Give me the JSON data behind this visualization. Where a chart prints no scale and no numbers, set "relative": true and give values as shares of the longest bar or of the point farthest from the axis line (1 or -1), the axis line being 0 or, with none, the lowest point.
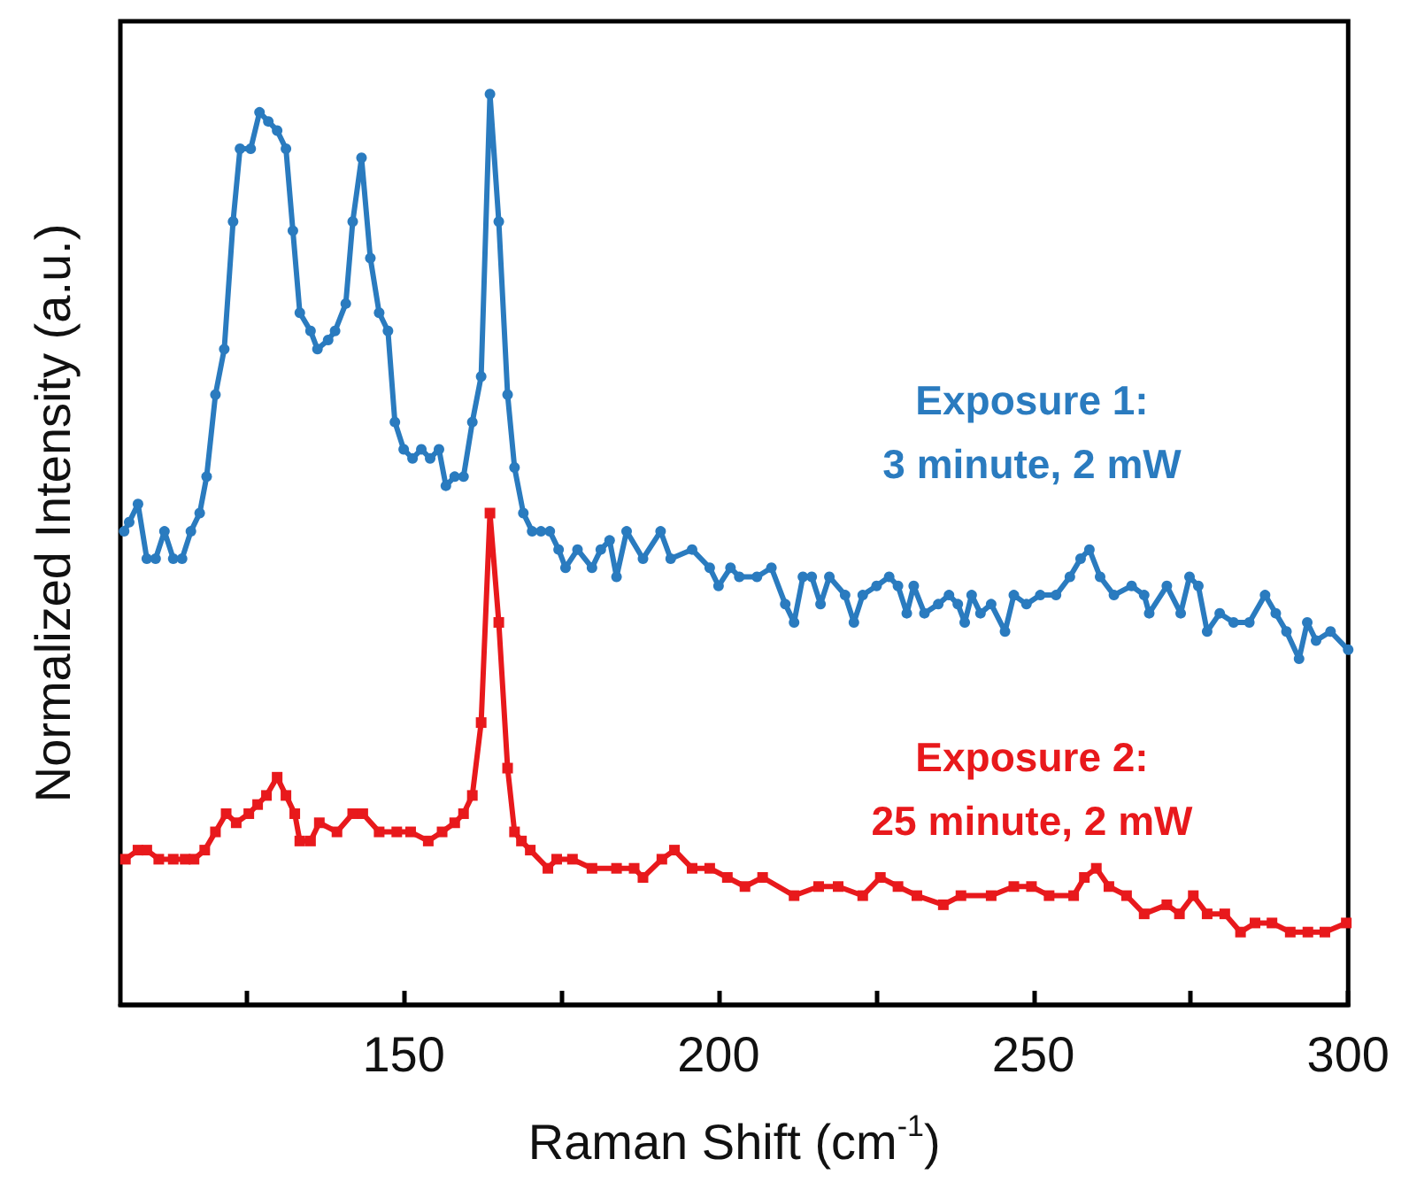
{
  "chart_data": {
    "type": "line",
    "relative": true,
    "xlabel": "Raman Shift (cm$^{-1}$)",
    "ylabel": "Normalized Intensity (a.u.)",
    "tick_labels": "x",
    "grid": false,
    "legend": false,
    "line_style": "solid",
    "xlim": [
      105,
      300
    ],
    "xticks": [
      {
        "value": 125,
        "label": null
      },
      150,
      {
        "value": 175,
        "label": null
      },
      200,
      {
        "value": 225,
        "label": null
      },
      250,
      {
        "value": 275,
        "label": null
      },
      300
    ],
    "series": [
      {
        "name": "Exposure 1:\n3 minute, 2 mW",
        "color": "#2a7bbf",
        "marker": "circle",
        "x": [
          105.6,
          106.4,
          107.8,
          109.2,
          110.6,
          112.0,
          113.4,
          114.8,
          116.2,
          117.6,
          118.7,
          120.1,
          121.5,
          122.9,
          124.0,
          125.7,
          127.1,
          128.5,
          129.9,
          131.3,
          132.4,
          133.5,
          135.2,
          136.3,
          138.0,
          139.1,
          140.8,
          141.9,
          143.3,
          144.7,
          146.1,
          147.5,
          148.6,
          150.0,
          151.4,
          152.8,
          154.2,
          155.6,
          156.7,
          158.1,
          159.5,
          160.9,
          162.3,
          163.7,
          165.1,
          166.5,
          167.6,
          169.0,
          170.4,
          171.8,
          173.2,
          174.6,
          175.7,
          177.6,
          179.9,
          181.3,
          182.7,
          183.8,
          185.4,
          188.0,
          190.8,
          192.4,
          195.8,
          198.6,
          200.0,
          201.9,
          203.3,
          206.1,
          208.4,
          210.6,
          212.0,
          213.4,
          214.8,
          216.2,
          217.6,
          220.1,
          221.5,
          222.9,
          225.1,
          227.1,
          228.5,
          229.9,
          231.0,
          232.7,
          234.9,
          236.6,
          238.0,
          239.1,
          240.2,
          241.6,
          243.3,
          245.5,
          246.9,
          248.9,
          251.1,
          253.6,
          255.8,
          257.5,
          258.9,
          260.6,
          262.8,
          265.6,
          267.6,
          268.4,
          271.2,
          273.4,
          274.8,
          276.2,
          277.6,
          279.6,
          281.8,
          284.3,
          286.8,
          288.5,
          290.2,
          292.2,
          293.5,
          294.9,
          297.2,
          300.0
        ],
        "values": [
          0.52,
          0.53,
          0.55,
          0.49,
          0.49,
          0.52,
          0.49,
          0.49,
          0.52,
          0.54,
          0.58,
          0.67,
          0.72,
          0.86,
          0.94,
          0.94,
          0.98,
          0.97,
          0.96,
          0.94,
          0.85,
          0.76,
          0.74,
          0.72,
          0.73,
          0.74,
          0.77,
          0.86,
          0.93,
          0.82,
          0.76,
          0.74,
          0.64,
          0.61,
          0.6,
          0.61,
          0.6,
          0.61,
          0.57,
          0.58,
          0.58,
          0.64,
          0.69,
          1,
          0.86,
          0.67,
          0.59,
          0.54,
          0.52,
          0.52,
          0.52,
          0.5,
          0.48,
          0.5,
          0.48,
          0.5,
          0.51,
          0.47,
          0.52,
          0.49,
          0.52,
          0.49,
          0.5,
          0.48,
          0.46,
          0.48,
          0.47,
          0.47,
          0.48,
          0.44,
          0.42,
          0.47,
          0.47,
          0.44,
          0.47,
          0.45,
          0.42,
          0.45,
          0.46,
          0.47,
          0.46,
          0.43,
          0.46,
          0.43,
          0.44,
          0.45,
          0.44,
          0.42,
          0.45,
          0.43,
          0.44,
          0.41,
          0.45,
          0.44,
          0.45,
          0.45,
          0.47,
          0.49,
          0.5,
          0.47,
          0.45,
          0.46,
          0.45,
          0.43,
          0.46,
          0.43,
          0.47,
          0.46,
          0.41,
          0.43,
          0.42,
          0.42,
          0.45,
          0.43,
          0.41,
          0.38,
          0.42,
          0.4,
          0.41,
          0.39
        ]
      },
      {
        "name": "Exposure 2:\n25 minute, 2 mW",
        "color": "#e8191c",
        "marker": "square",
        "x": [
          105.8,
          107.8,
          109.2,
          111.1,
          113.4,
          115.3,
          116.7,
          118.4,
          120.1,
          121.8,
          123.4,
          125.4,
          126.8,
          128.2,
          129.9,
          131.3,
          132.7,
          133.5,
          135.2,
          136.6,
          139.4,
          141.9,
          143.5,
          146.1,
          148.9,
          151.1,
          153.9,
          156.1,
          158.1,
          159.5,
          160.9,
          162.3,
          163.7,
          165.1,
          166.5,
          167.6,
          168.7,
          170.1,
          172.9,
          174.3,
          176.8,
          179.9,
          183.8,
          186.6,
          188.0,
          191.0,
          193.0,
          195.8,
          198.6,
          201.4,
          204.2,
          207.0,
          212.0,
          215.9,
          219.0,
          222.9,
          225.7,
          228.5,
          231.5,
          235.7,
          238.5,
          243.3,
          246.9,
          249.7,
          252.5,
          256.4,
          258.1,
          260.0,
          262.0,
          264.8,
          267.6,
          271.2,
          273.2,
          275.4,
          277.6,
          280.4,
          282.9,
          285.2,
          287.9,
          290.8,
          293.6,
          296.3,
          299.7
        ],
        "values": [
          0.16,
          0.17,
          0.17,
          0.16,
          0.16,
          0.16,
          0.16,
          0.17,
          0.19,
          0.21,
          0.2,
          0.21,
          0.22,
          0.23,
          0.25,
          0.23,
          0.21,
          0.18,
          0.18,
          0.2,
          0.19,
          0.21,
          0.21,
          0.19,
          0.19,
          0.19,
          0.18,
          0.19,
          0.2,
          0.21,
          0.23,
          0.31,
          0.54,
          0.42,
          0.26,
          0.19,
          0.18,
          0.17,
          0.15,
          0.16,
          0.16,
          0.15,
          0.15,
          0.15,
          0.14,
          0.16,
          0.17,
          0.15,
          0.15,
          0.14,
          0.13,
          0.14,
          0.12,
          0.13,
          0.13,
          0.12,
          0.14,
          0.13,
          0.12,
          0.11,
          0.12,
          0.12,
          0.13,
          0.13,
          0.12,
          0.12,
          0.14,
          0.15,
          0.13,
          0.12,
          0.1,
          0.11,
          0.1,
          0.12,
          0.1,
          0.1,
          0.08,
          0.09,
          0.09,
          0.08,
          0.08,
          0.08,
          0.09
        ]
      }
    ]
  }
}
